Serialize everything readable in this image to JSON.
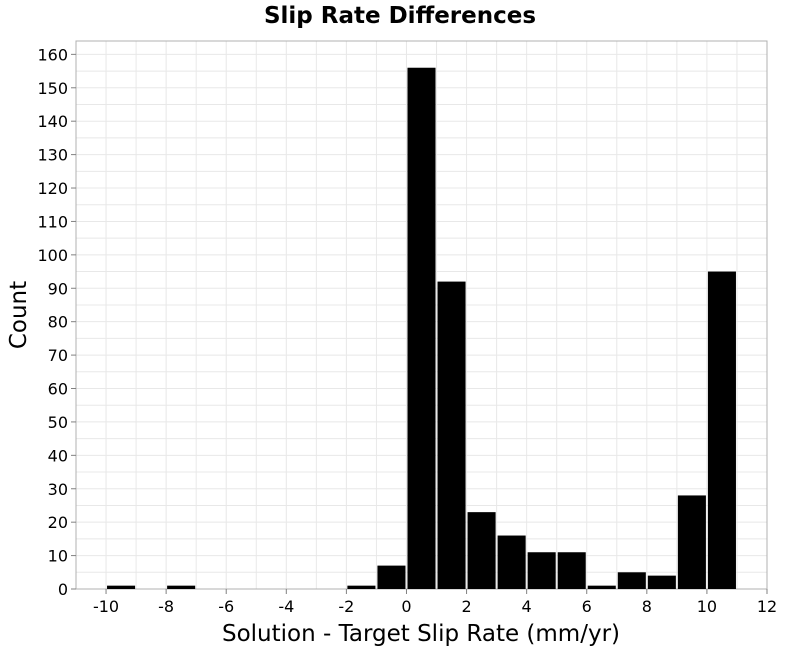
{
  "chart_data": {
    "type": "bar",
    "title": "Slip Rate Differences",
    "xlabel": "Solution - Target Slip Rate (mm/yr)",
    "ylabel": "Count",
    "xlim": [
      -11,
      12
    ],
    "ylim": [
      0,
      164
    ],
    "xticks": [
      -10,
      -8,
      -6,
      -4,
      -2,
      0,
      2,
      4,
      6,
      8,
      10,
      12
    ],
    "yticks": [
      0,
      10,
      20,
      30,
      40,
      50,
      60,
      70,
      80,
      90,
      100,
      110,
      120,
      130,
      140,
      150,
      160
    ],
    "bin_width": 1,
    "grid": true,
    "bar_color": "#000000",
    "bins": [
      {
        "x": -10,
        "value": 1
      },
      {
        "x": -8,
        "value": 1
      },
      {
        "x": -2,
        "value": 1
      },
      {
        "x": -1,
        "value": 7
      },
      {
        "x": 0,
        "value": 156
      },
      {
        "x": 1,
        "value": 92
      },
      {
        "x": 2,
        "value": 23
      },
      {
        "x": 3,
        "value": 16
      },
      {
        "x": 4,
        "value": 11
      },
      {
        "x": 5,
        "value": 11
      },
      {
        "x": 6,
        "value": 1
      },
      {
        "x": 7,
        "value": 5
      },
      {
        "x": 8,
        "value": 4
      },
      {
        "x": 9,
        "value": 28
      },
      {
        "x": 10,
        "value": 95
      }
    ]
  }
}
